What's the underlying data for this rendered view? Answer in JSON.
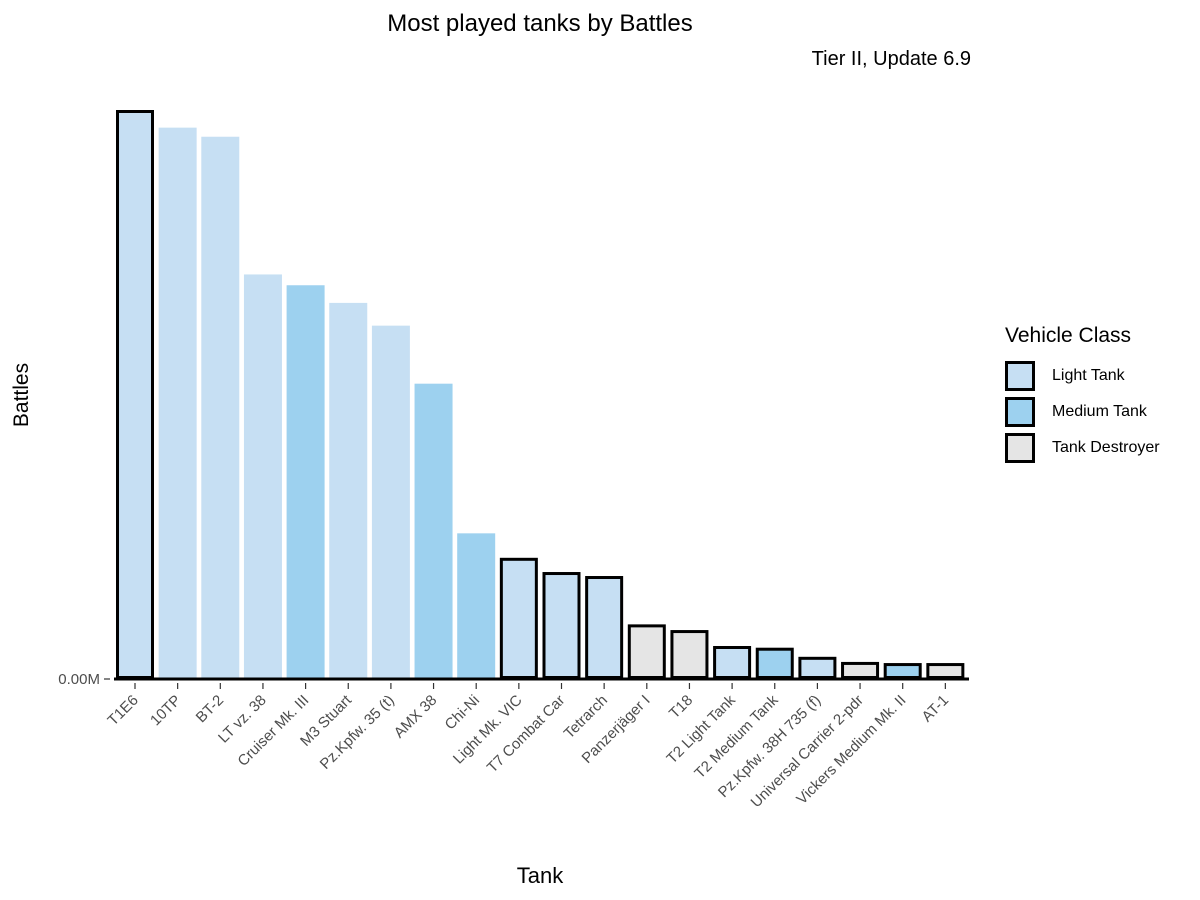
{
  "chart_data": {
    "type": "bar",
    "title": "Most played tanks by Battles",
    "subtitle": "Tier II, Update 6.9",
    "xlabel": "Tank",
    "ylabel": "Battles",
    "y_tick_labels": [
      "0.00M"
    ],
    "grid": false,
    "legend_position": "right",
    "legend": {
      "title": "Vehicle Class",
      "entries": [
        {
          "name": "Light Tank",
          "color": "#c6dff3"
        },
        {
          "name": "Medium Tank",
          "color": "#9dd1ef"
        },
        {
          "name": "Tank Destroyer",
          "color": "#e5e5e5"
        }
      ]
    },
    "categories": [
      "T1E6",
      "10TP",
      "BT-2",
      "LT vz. 38",
      "Cruiser Mk. III",
      "M3 Stuart",
      "Pz.Kpfw. 35 (t)",
      "AMX 38",
      "Chi-Ni",
      "Light Mk. VIC",
      "T7 Combat Car",
      "Tetrarch",
      "Panzerjäger I",
      "T18",
      "T2 Light Tank",
      "T2 Medium Tank",
      "Pz.Kpfw. 38H 735 (f)",
      "Universal Carrier 2-pdr",
      "Vickers Medium Mk. II",
      "AT-1"
    ],
    "classes": [
      "Light Tank",
      "Light Tank",
      "Light Tank",
      "Light Tank",
      "Medium Tank",
      "Light Tank",
      "Light Tank",
      "Medium Tank",
      "Medium Tank",
      "Light Tank",
      "Light Tank",
      "Light Tank",
      "Tank Destroyer",
      "Tank Destroyer",
      "Light Tank",
      "Medium Tank",
      "Light Tank",
      "Tank Destroyer",
      "Medium Tank",
      "Tank Destroyer"
    ],
    "outlined": [
      true,
      false,
      false,
      false,
      false,
      false,
      false,
      false,
      false,
      true,
      true,
      true,
      true,
      true,
      true,
      true,
      true,
      true,
      true,
      true
    ],
    "values": [
      100.0,
      96.9,
      95.3,
      71.1,
      69.2,
      66.1,
      62.1,
      51.9,
      25.6,
      21.3,
      18.8,
      18.1,
      9.6,
      8.6,
      5.8,
      5.5,
      3.9,
      3.0,
      2.8,
      2.8
    ],
    "ylim": [
      0,
      100
    ]
  }
}
